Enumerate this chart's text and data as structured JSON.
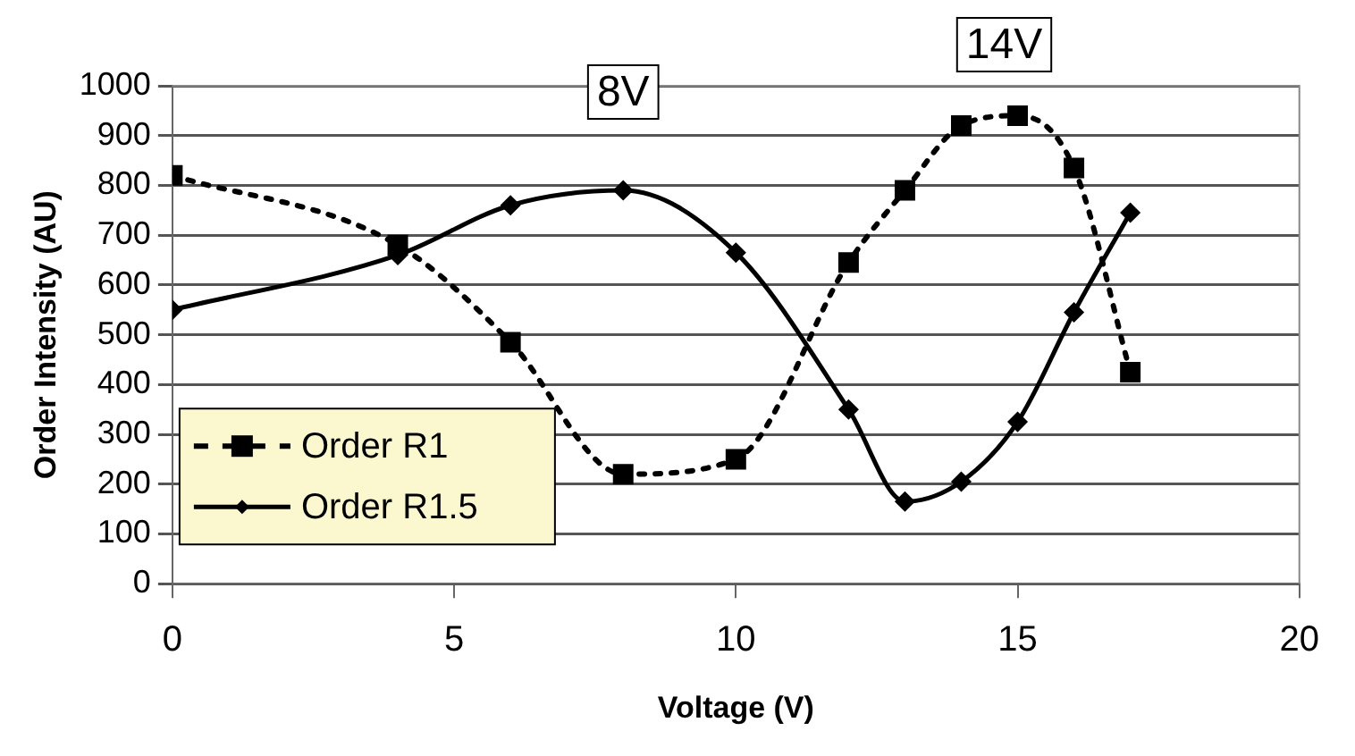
{
  "chart_data": {
    "type": "line",
    "xlabel": "Voltage (V)",
    "ylabel": "Order Intensity (AU)",
    "x": [
      0,
      4,
      6,
      8,
      10,
      12,
      13,
      14,
      15,
      16,
      17
    ],
    "series": [
      {
        "name": "Order R1",
        "color": "#000000",
        "marker": "square",
        "line_style": "dotted",
        "values": [
          820,
          680,
          485,
          220,
          250,
          645,
          790,
          920,
          940,
          835,
          425
        ]
      },
      {
        "name": "Order R1.5",
        "color": "#000000",
        "marker": "diamond",
        "line_style": "solid",
        "values": [
          550,
          660,
          760,
          790,
          665,
          350,
          165,
          205,
          325,
          545,
          745
        ]
      }
    ],
    "xlim": [
      0,
      20
    ],
    "xticks": [
      0,
      5,
      10,
      15,
      20
    ],
    "ylim": [
      0,
      1000
    ],
    "yticks": [
      0,
      100,
      200,
      300,
      400,
      500,
      600,
      700,
      800,
      900,
      1000
    ],
    "grid": "y",
    "legend": "bottom left",
    "annotations": [
      {
        "text": "8V",
        "x": 8,
        "y": 790
      },
      {
        "text": "14V",
        "x": 14,
        "y": 920
      }
    ]
  }
}
